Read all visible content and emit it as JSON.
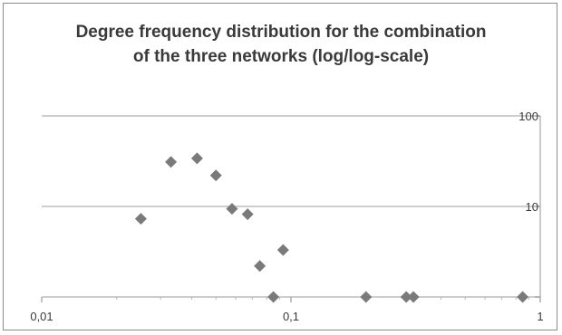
{
  "chart_data": {
    "type": "scatter",
    "title": "Degree frequency distribution for the combination of the three networks (log/log-scale)",
    "xlabel": "",
    "ylabel": "",
    "x_scale": "log",
    "y_scale": "log",
    "xlim": [
      0.01,
      1
    ],
    "ylim": [
      1,
      100
    ],
    "x_ticks": [
      "0,01",
      "0,1",
      "1"
    ],
    "y_ticks": [
      "10",
      "100"
    ],
    "grid": "horizontal",
    "legend": "none",
    "marker": "diamond",
    "marker_color": "#7a7a7a",
    "points": [
      {
        "x": 0.025,
        "y": 7.3
      },
      {
        "x": 0.033,
        "y": 31
      },
      {
        "x": 0.042,
        "y": 34
      },
      {
        "x": 0.05,
        "y": 22
      },
      {
        "x": 0.058,
        "y": 9.4
      },
      {
        "x": 0.067,
        "y": 8.2
      },
      {
        "x": 0.075,
        "y": 2.2
      },
      {
        "x": 0.085,
        "y": 1
      },
      {
        "x": 0.093,
        "y": 3.3
      },
      {
        "x": 0.2,
        "y": 1
      },
      {
        "x": 0.29,
        "y": 1
      },
      {
        "x": 0.31,
        "y": 1
      },
      {
        "x": 0.85,
        "y": 1
      }
    ]
  }
}
